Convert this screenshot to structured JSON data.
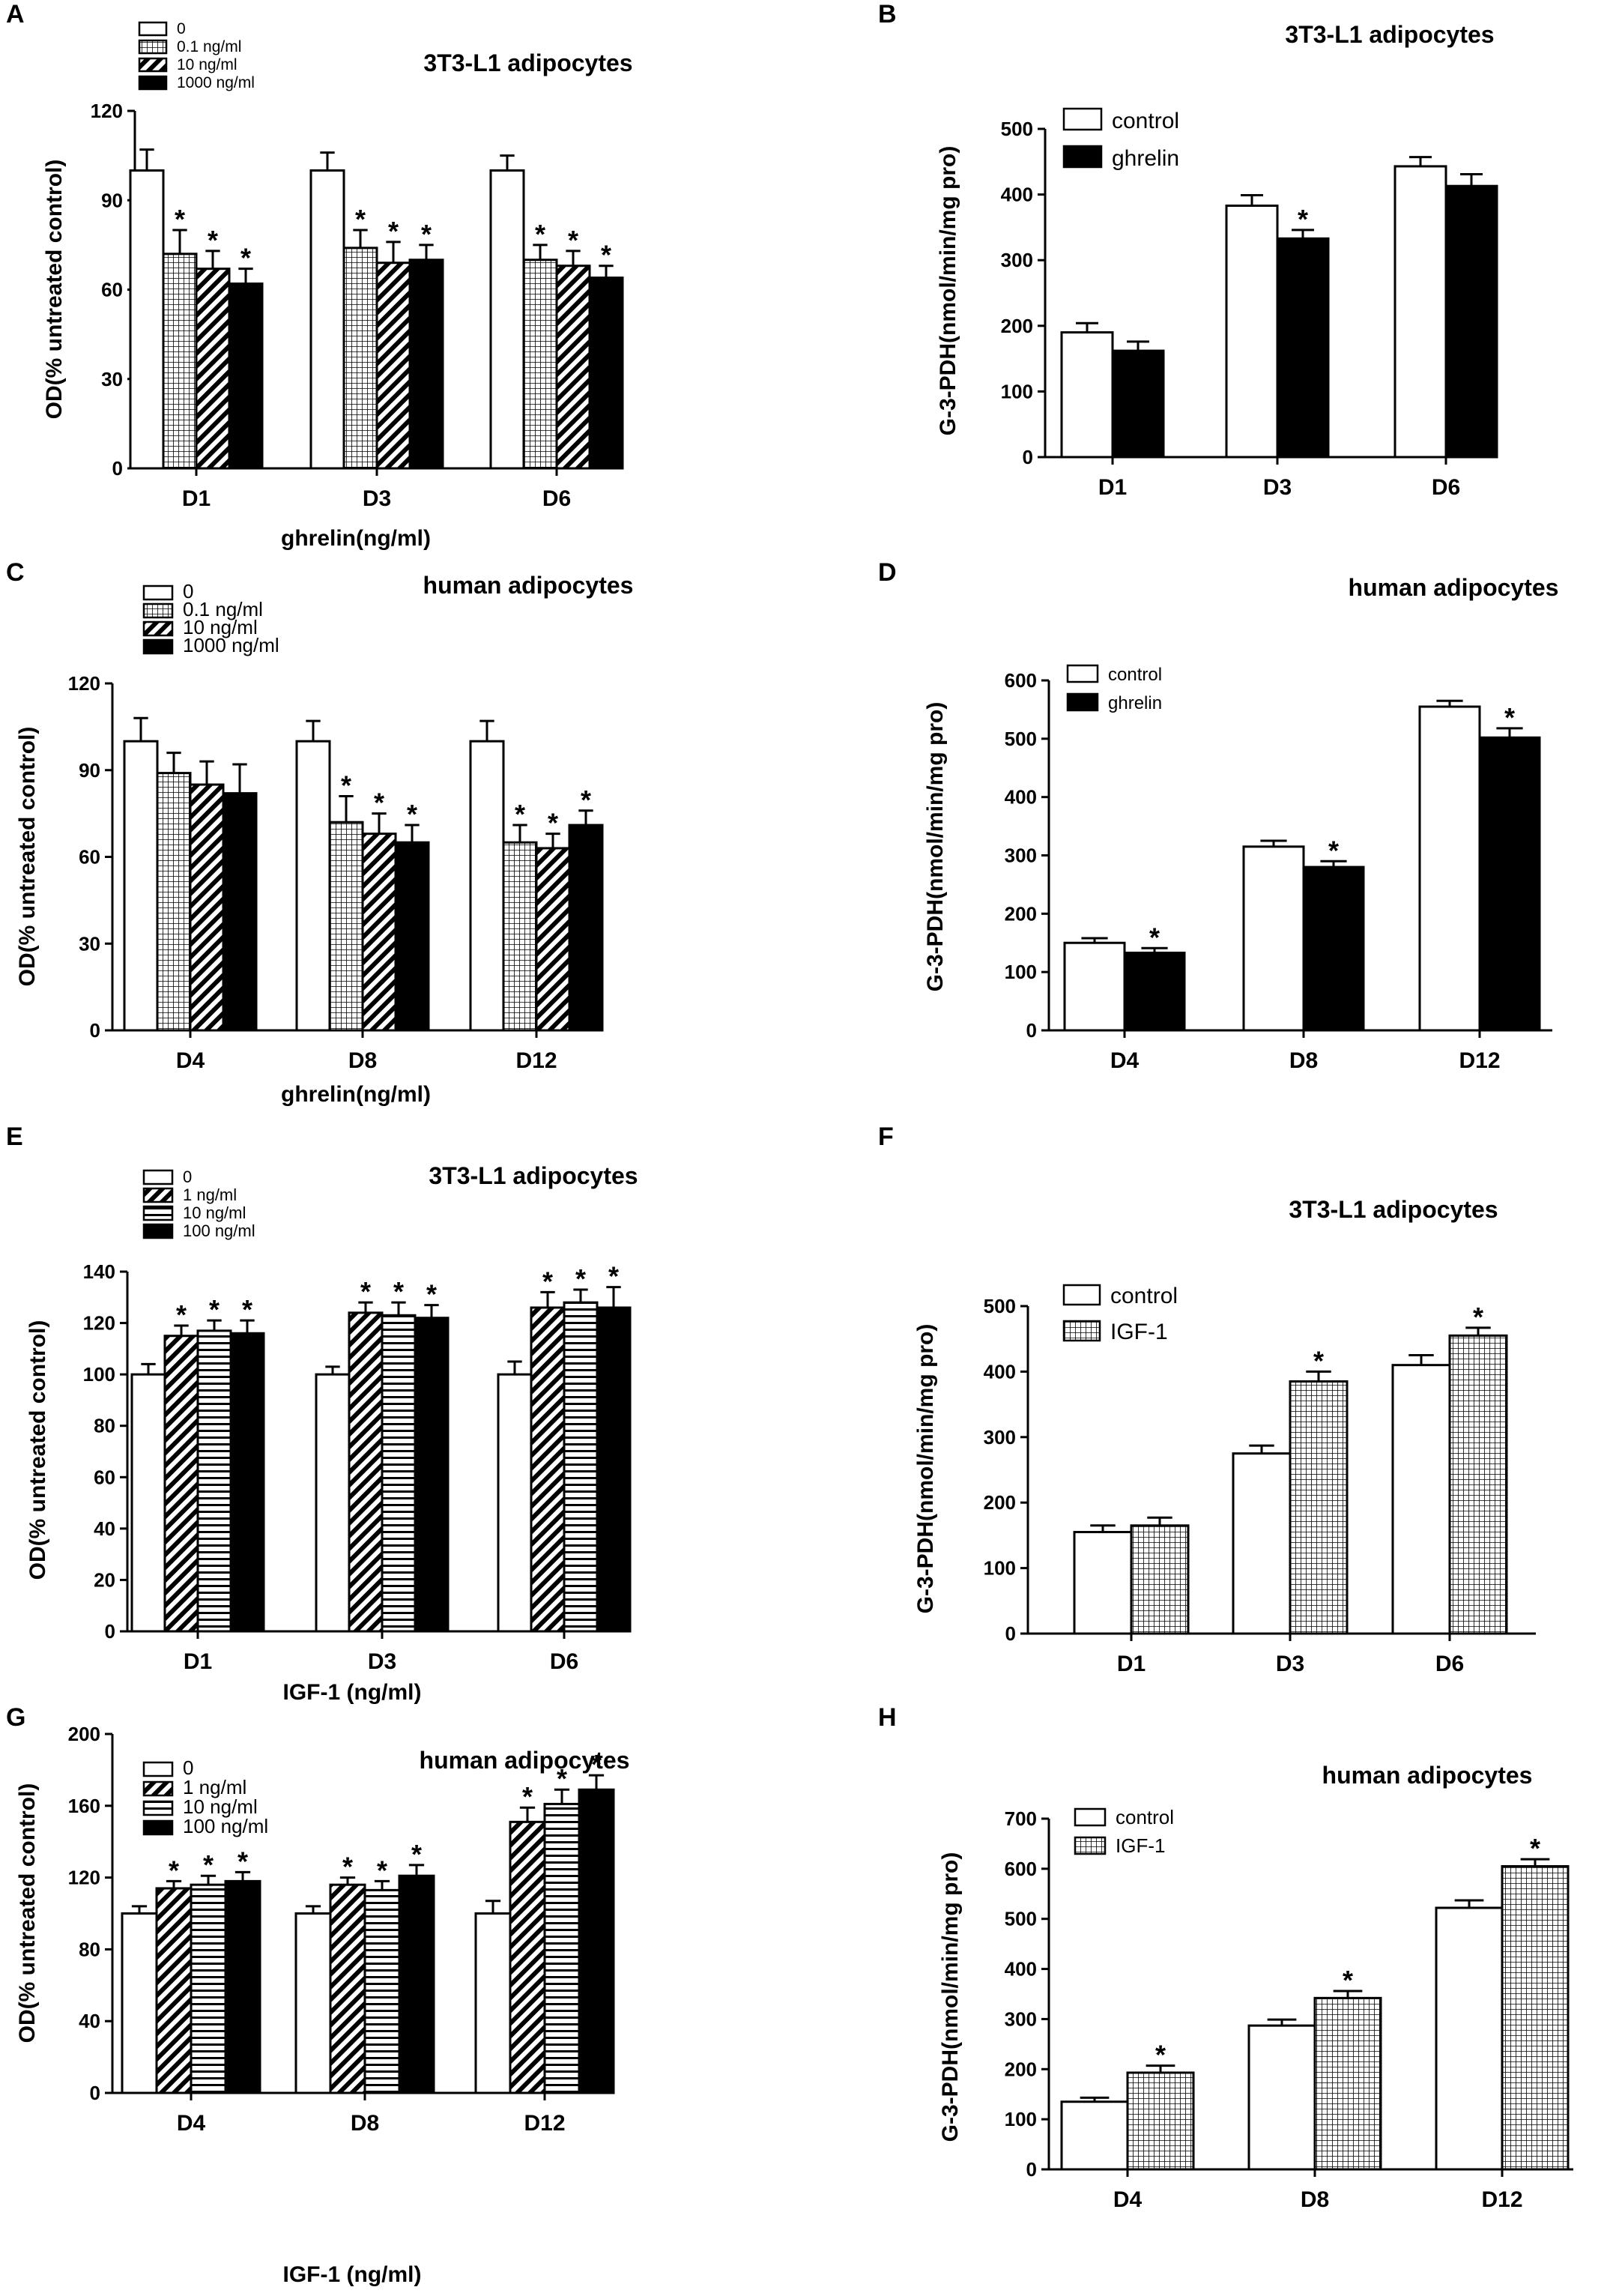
{
  "figure": {
    "panels": [
      "A",
      "B",
      "C",
      "D",
      "E",
      "F",
      "G",
      "H"
    ]
  },
  "colors": {
    "bar_stroke": "#000000",
    "bar_fill_white": "#ffffff",
    "bar_fill_black": "#000000"
  },
  "chart_data": [
    {
      "panel": "A",
      "type": "bar",
      "title": "3T3-L1 adipocytes",
      "xlabel": "ghrelin(ng/ml)",
      "ylabel": "OD(% untreated control)",
      "ylim": [
        0,
        120
      ],
      "yticks": [
        0,
        30,
        60,
        90,
        120
      ],
      "categories": [
        "D1",
        "D3",
        "D6"
      ],
      "legend_position": "top-left",
      "series": [
        {
          "name": "0",
          "pattern": "white",
          "values": [
            100,
            100,
            100
          ],
          "errors": [
            7,
            6,
            5
          ],
          "sig": [
            false,
            false,
            false
          ]
        },
        {
          "name": "0.1 ng/ml",
          "pattern": "grid",
          "values": [
            72,
            74,
            70
          ],
          "errors": [
            8,
            6,
            5
          ],
          "sig": [
            true,
            true,
            true
          ]
        },
        {
          "name": "10 ng/ml",
          "pattern": "diag",
          "values": [
            67,
            69,
            68
          ],
          "errors": [
            6,
            7,
            5
          ],
          "sig": [
            true,
            true,
            true
          ]
        },
        {
          "name": "1000 ng/ml",
          "pattern": "black",
          "values": [
            62,
            70,
            64
          ],
          "errors": [
            5,
            5,
            4
          ],
          "sig": [
            true,
            true,
            true
          ]
        }
      ]
    },
    {
      "panel": "B",
      "type": "bar",
      "title": "3T3-L1 adipocytes",
      "xlabel": "",
      "ylabel": "G-3-PDH(nmol/min/mg pro)",
      "ylim": [
        0,
        500
      ],
      "yticks": [
        0,
        100,
        200,
        300,
        400,
        500
      ],
      "categories": [
        "D1",
        "D3",
        "D6"
      ],
      "legend_position": "top-left",
      "series": [
        {
          "name": "control",
          "pattern": "white",
          "values": [
            190,
            383,
            443
          ],
          "errors": [
            14,
            16,
            14
          ],
          "sig": [
            false,
            false,
            false
          ]
        },
        {
          "name": "ghrelin",
          "pattern": "black",
          "values": [
            162,
            333,
            413
          ],
          "errors": [
            14,
            13,
            18
          ],
          "sig": [
            false,
            true,
            false
          ]
        }
      ]
    },
    {
      "panel": "C",
      "type": "bar",
      "title": "human adipocytes",
      "xlabel": "ghrelin(ng/ml)",
      "ylabel": "OD(% untreated control)",
      "ylim": [
        0,
        120
      ],
      "yticks": [
        0,
        30,
        60,
        90,
        120
      ],
      "categories": [
        "D4",
        "D8",
        "D12"
      ],
      "legend_position": "top-left",
      "series": [
        {
          "name": "0",
          "pattern": "white",
          "values": [
            100,
            100,
            100
          ],
          "errors": [
            8,
            7,
            7
          ],
          "sig": [
            false,
            false,
            false
          ]
        },
        {
          "name": "0.1 ng/ml",
          "pattern": "grid",
          "values": [
            89,
            72,
            65
          ],
          "errors": [
            7,
            9,
            6
          ],
          "sig": [
            false,
            true,
            true
          ]
        },
        {
          "name": "10 ng/ml",
          "pattern": "diag",
          "values": [
            85,
            68,
            63
          ],
          "errors": [
            8,
            7,
            5
          ],
          "sig": [
            false,
            true,
            true
          ]
        },
        {
          "name": "1000 ng/ml",
          "pattern": "black",
          "values": [
            82,
            65,
            71
          ],
          "errors": [
            10,
            6,
            5
          ],
          "sig": [
            false,
            true,
            true
          ]
        }
      ]
    },
    {
      "panel": "D",
      "type": "bar",
      "title": "human adipocytes",
      "xlabel": "",
      "ylabel": "G-3-PDH(nmol/min/mg pro)",
      "ylim": [
        0,
        600
      ],
      "yticks": [
        0,
        100,
        200,
        300,
        400,
        500,
        600
      ],
      "categories": [
        "D4",
        "D8",
        "D12"
      ],
      "legend_position": "top-left",
      "series": [
        {
          "name": "control",
          "pattern": "white",
          "values": [
            150,
            315,
            555
          ],
          "errors": [
            8,
            10,
            10
          ],
          "sig": [
            false,
            false,
            false
          ]
        },
        {
          "name": "ghrelin",
          "pattern": "black",
          "values": [
            133,
            280,
            502
          ],
          "errors": [
            8,
            10,
            16
          ],
          "sig": [
            true,
            true,
            true
          ]
        }
      ]
    },
    {
      "panel": "E",
      "type": "bar",
      "title": "3T3-L1 adipocytes",
      "xlabel": "IGF-1 (ng/ml)",
      "ylabel": "OD(% untreated control)",
      "ylim": [
        0,
        140
      ],
      "yticks": [
        0,
        20,
        40,
        60,
        80,
        100,
        120,
        140
      ],
      "categories": [
        "D1",
        "D3",
        "D6"
      ],
      "legend_position": "top-left",
      "series": [
        {
          "name": "0",
          "pattern": "white",
          "values": [
            100,
            100,
            100
          ],
          "errors": [
            4,
            3,
            5
          ],
          "sig": [
            false,
            false,
            false
          ]
        },
        {
          "name": "1 ng/ml",
          "pattern": "diag",
          "values": [
            115,
            124,
            126
          ],
          "errors": [
            4,
            4,
            6
          ],
          "sig": [
            true,
            true,
            true
          ]
        },
        {
          "name": "10 ng/ml",
          "pattern": "hstripe",
          "values": [
            117,
            123,
            128
          ],
          "errors": [
            4,
            5,
            5
          ],
          "sig": [
            true,
            true,
            true
          ]
        },
        {
          "name": "100 ng/ml",
          "pattern": "black",
          "values": [
            116,
            122,
            126
          ],
          "errors": [
            5,
            5,
            8
          ],
          "sig": [
            true,
            true,
            true
          ]
        }
      ]
    },
    {
      "panel": "F",
      "type": "bar",
      "title": "3T3-L1 adipocytes",
      "xlabel": "",
      "ylabel": "G-3-PDH(nmol/min/mg pro)",
      "ylim": [
        0,
        500
      ],
      "yticks": [
        0,
        100,
        200,
        300,
        400,
        500
      ],
      "categories": [
        "D1",
        "D3",
        "D6"
      ],
      "legend_position": "top-left",
      "series": [
        {
          "name": "control",
          "pattern": "white",
          "values": [
            155,
            275,
            410
          ],
          "errors": [
            10,
            12,
            15
          ],
          "sig": [
            false,
            false,
            false
          ]
        },
        {
          "name": "IGF-1",
          "pattern": "grid",
          "values": [
            165,
            385,
            455
          ],
          "errors": [
            12,
            15,
            12
          ],
          "sig": [
            false,
            true,
            true
          ]
        }
      ]
    },
    {
      "panel": "G",
      "type": "bar",
      "title": "human adipocytes",
      "xlabel": "IGF-1 (ng/ml)",
      "ylabel": "OD(% untreated control)",
      "ylim": [
        0,
        200
      ],
      "yticks": [
        0,
        40,
        80,
        120,
        160,
        200
      ],
      "categories": [
        "D4",
        "D8",
        "D12"
      ],
      "legend_position": "top-left",
      "series": [
        {
          "name": "0",
          "pattern": "white",
          "values": [
            100,
            100,
            100
          ],
          "errors": [
            4,
            4,
            7
          ],
          "sig": [
            false,
            false,
            false
          ]
        },
        {
          "name": "1 ng/ml",
          "pattern": "diag",
          "values": [
            114,
            116,
            151
          ],
          "errors": [
            4,
            4,
            8
          ],
          "sig": [
            true,
            true,
            true
          ]
        },
        {
          "name": "10 ng/ml",
          "pattern": "hstripe",
          "values": [
            116,
            113,
            161
          ],
          "errors": [
            5,
            5,
            8
          ],
          "sig": [
            true,
            true,
            true
          ]
        },
        {
          "name": "100 ng/ml",
          "pattern": "black",
          "values": [
            118,
            121,
            169
          ],
          "errors": [
            5,
            6,
            8
          ],
          "sig": [
            true,
            true,
            true
          ]
        }
      ]
    },
    {
      "panel": "H",
      "type": "bar",
      "title": "human adipocytes",
      "xlabel": "",
      "ylabel": "G-3-PDH(nmol/min/mg pro)",
      "ylim": [
        0,
        700
      ],
      "yticks": [
        0,
        100,
        200,
        300,
        400,
        500,
        600,
        700
      ],
      "categories": [
        "D4",
        "D8",
        "D12"
      ],
      "legend_position": "top-left",
      "series": [
        {
          "name": "control",
          "pattern": "white",
          "values": [
            135,
            287,
            522
          ],
          "errors": [
            8,
            12,
            15
          ],
          "sig": [
            false,
            false,
            false
          ]
        },
        {
          "name": "IGF-1",
          "pattern": "grid",
          "values": [
            193,
            342,
            605
          ],
          "errors": [
            14,
            14,
            14
          ],
          "sig": [
            true,
            true,
            true
          ]
        }
      ]
    }
  ]
}
